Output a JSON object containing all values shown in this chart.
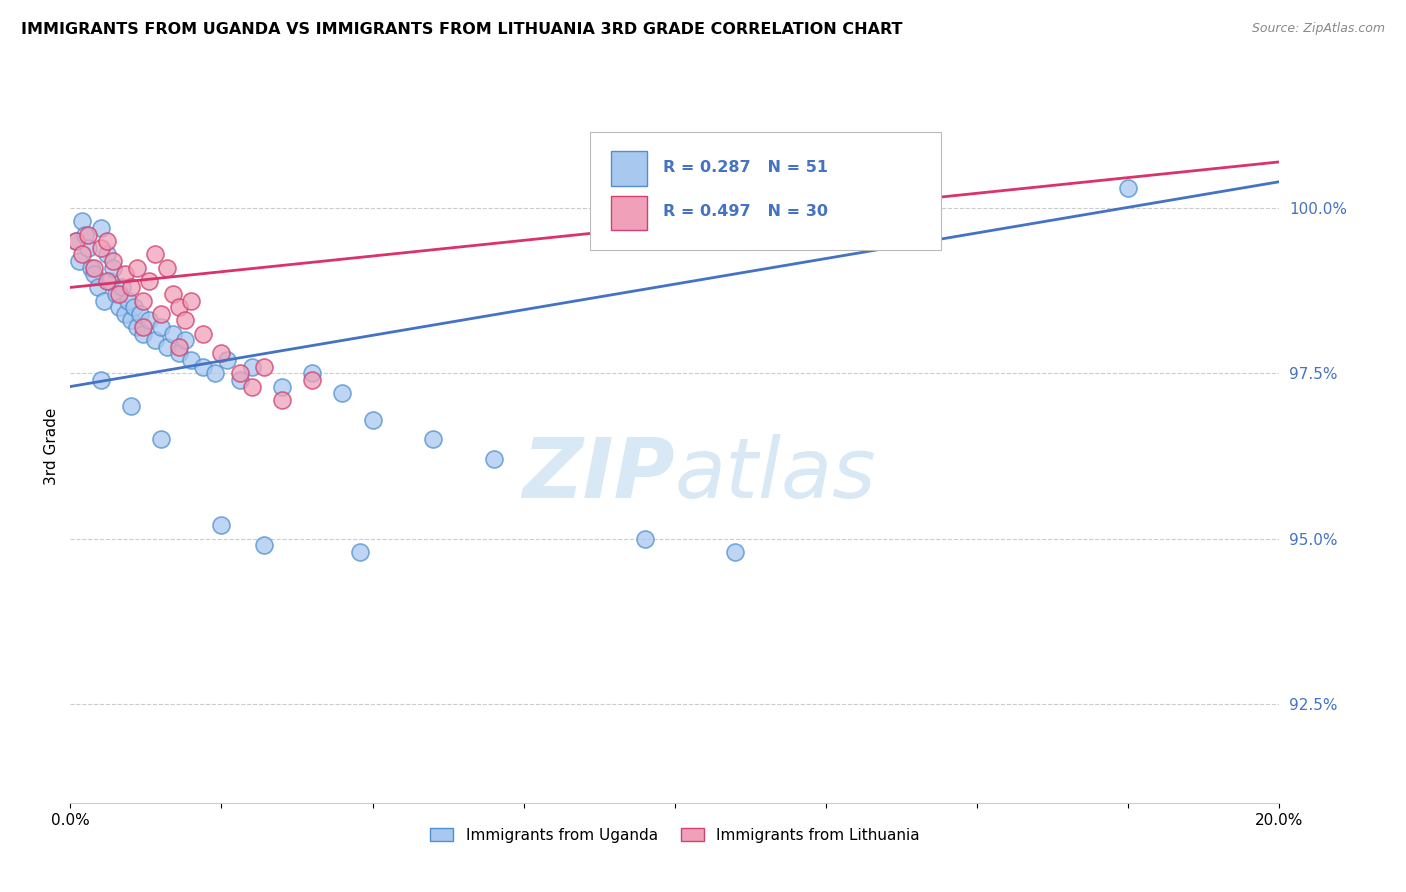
{
  "title": "IMMIGRANTS FROM UGANDA VS IMMIGRANTS FROM LITHUANIA 3RD GRADE CORRELATION CHART",
  "source": "Source: ZipAtlas.com",
  "ylabel": "3rd Grade",
  "legend_blue_label": "Immigrants from Uganda",
  "legend_pink_label": "Immigrants from Lithuania",
  "xlim": [
    0.0,
    20.0
  ],
  "ylim": [
    91.0,
    101.8
  ],
  "x_ticks": [
    0.0,
    2.5,
    5.0,
    7.5,
    10.0,
    12.5,
    15.0,
    17.5,
    20.0
  ],
  "x_tick_labels": [
    "0.0%",
    "",
    "",
    "",
    "",
    "",
    "",
    "",
    "20.0%"
  ],
  "y_ticks_right": [
    92.5,
    95.0,
    97.5,
    100.0
  ],
  "y_tick_labels_right": [
    "92.5%",
    "95.0%",
    "97.5%",
    "100.0%"
  ],
  "R_blue": 0.287,
  "N_blue": 51,
  "R_pink": 0.497,
  "N_pink": 30,
  "color_blue": "#A8C8F0",
  "color_pink": "#F0A0B8",
  "color_blue_edge": "#5090D0",
  "color_pink_edge": "#D04070",
  "color_blue_line": "#4472C4",
  "color_pink_line": "#D9336A",
  "color_blue_text": "#4472C4",
  "watermark_color": "#D8E8F5",
  "grid_color": "#CCCCCC",
  "scatter_blue_x": [
    0.1,
    0.15,
    0.2,
    0.25,
    0.3,
    0.35,
    0.4,
    0.45,
    0.5,
    0.55,
    0.6,
    0.65,
    0.7,
    0.75,
    0.8,
    0.85,
    0.9,
    0.95,
    1.0,
    1.05,
    1.1,
    1.15,
    1.2,
    1.3,
    1.4,
    1.5,
    1.6,
    1.7,
    1.8,
    1.9,
    2.0,
    2.2,
    2.4,
    2.6,
    2.8,
    3.0,
    3.5,
    4.0,
    4.5,
    5.0,
    6.0,
    7.0,
    9.5,
    11.0,
    17.5,
    0.5,
    1.0,
    1.5,
    2.5,
    3.2,
    4.8
  ],
  "scatter_blue_y": [
    99.5,
    99.2,
    99.8,
    99.6,
    99.4,
    99.1,
    99.0,
    98.8,
    99.7,
    98.6,
    99.3,
    98.9,
    99.1,
    98.7,
    98.5,
    98.8,
    98.4,
    98.6,
    98.3,
    98.5,
    98.2,
    98.4,
    98.1,
    98.3,
    98.0,
    98.2,
    97.9,
    98.1,
    97.8,
    98.0,
    97.7,
    97.6,
    97.5,
    97.7,
    97.4,
    97.6,
    97.3,
    97.5,
    97.2,
    96.8,
    96.5,
    96.2,
    95.0,
    94.8,
    100.3,
    97.4,
    97.0,
    96.5,
    95.2,
    94.9,
    94.8
  ],
  "scatter_pink_x": [
    0.1,
    0.2,
    0.3,
    0.4,
    0.5,
    0.6,
    0.7,
    0.8,
    0.9,
    1.0,
    1.1,
    1.2,
    1.3,
    1.4,
    1.5,
    1.6,
    1.7,
    1.8,
    1.9,
    2.0,
    2.2,
    2.5,
    2.8,
    3.0,
    3.2,
    3.5,
    4.0,
    0.6,
    1.2,
    1.8
  ],
  "scatter_pink_y": [
    99.5,
    99.3,
    99.6,
    99.1,
    99.4,
    98.9,
    99.2,
    98.7,
    99.0,
    98.8,
    99.1,
    98.6,
    98.9,
    99.3,
    98.4,
    99.1,
    98.7,
    98.5,
    98.3,
    98.6,
    98.1,
    97.8,
    97.5,
    97.3,
    97.6,
    97.1,
    97.4,
    99.5,
    98.2,
    97.9
  ],
  "blue_trend": [
    97.3,
    100.4
  ],
  "pink_trend": [
    98.8,
    100.7
  ]
}
